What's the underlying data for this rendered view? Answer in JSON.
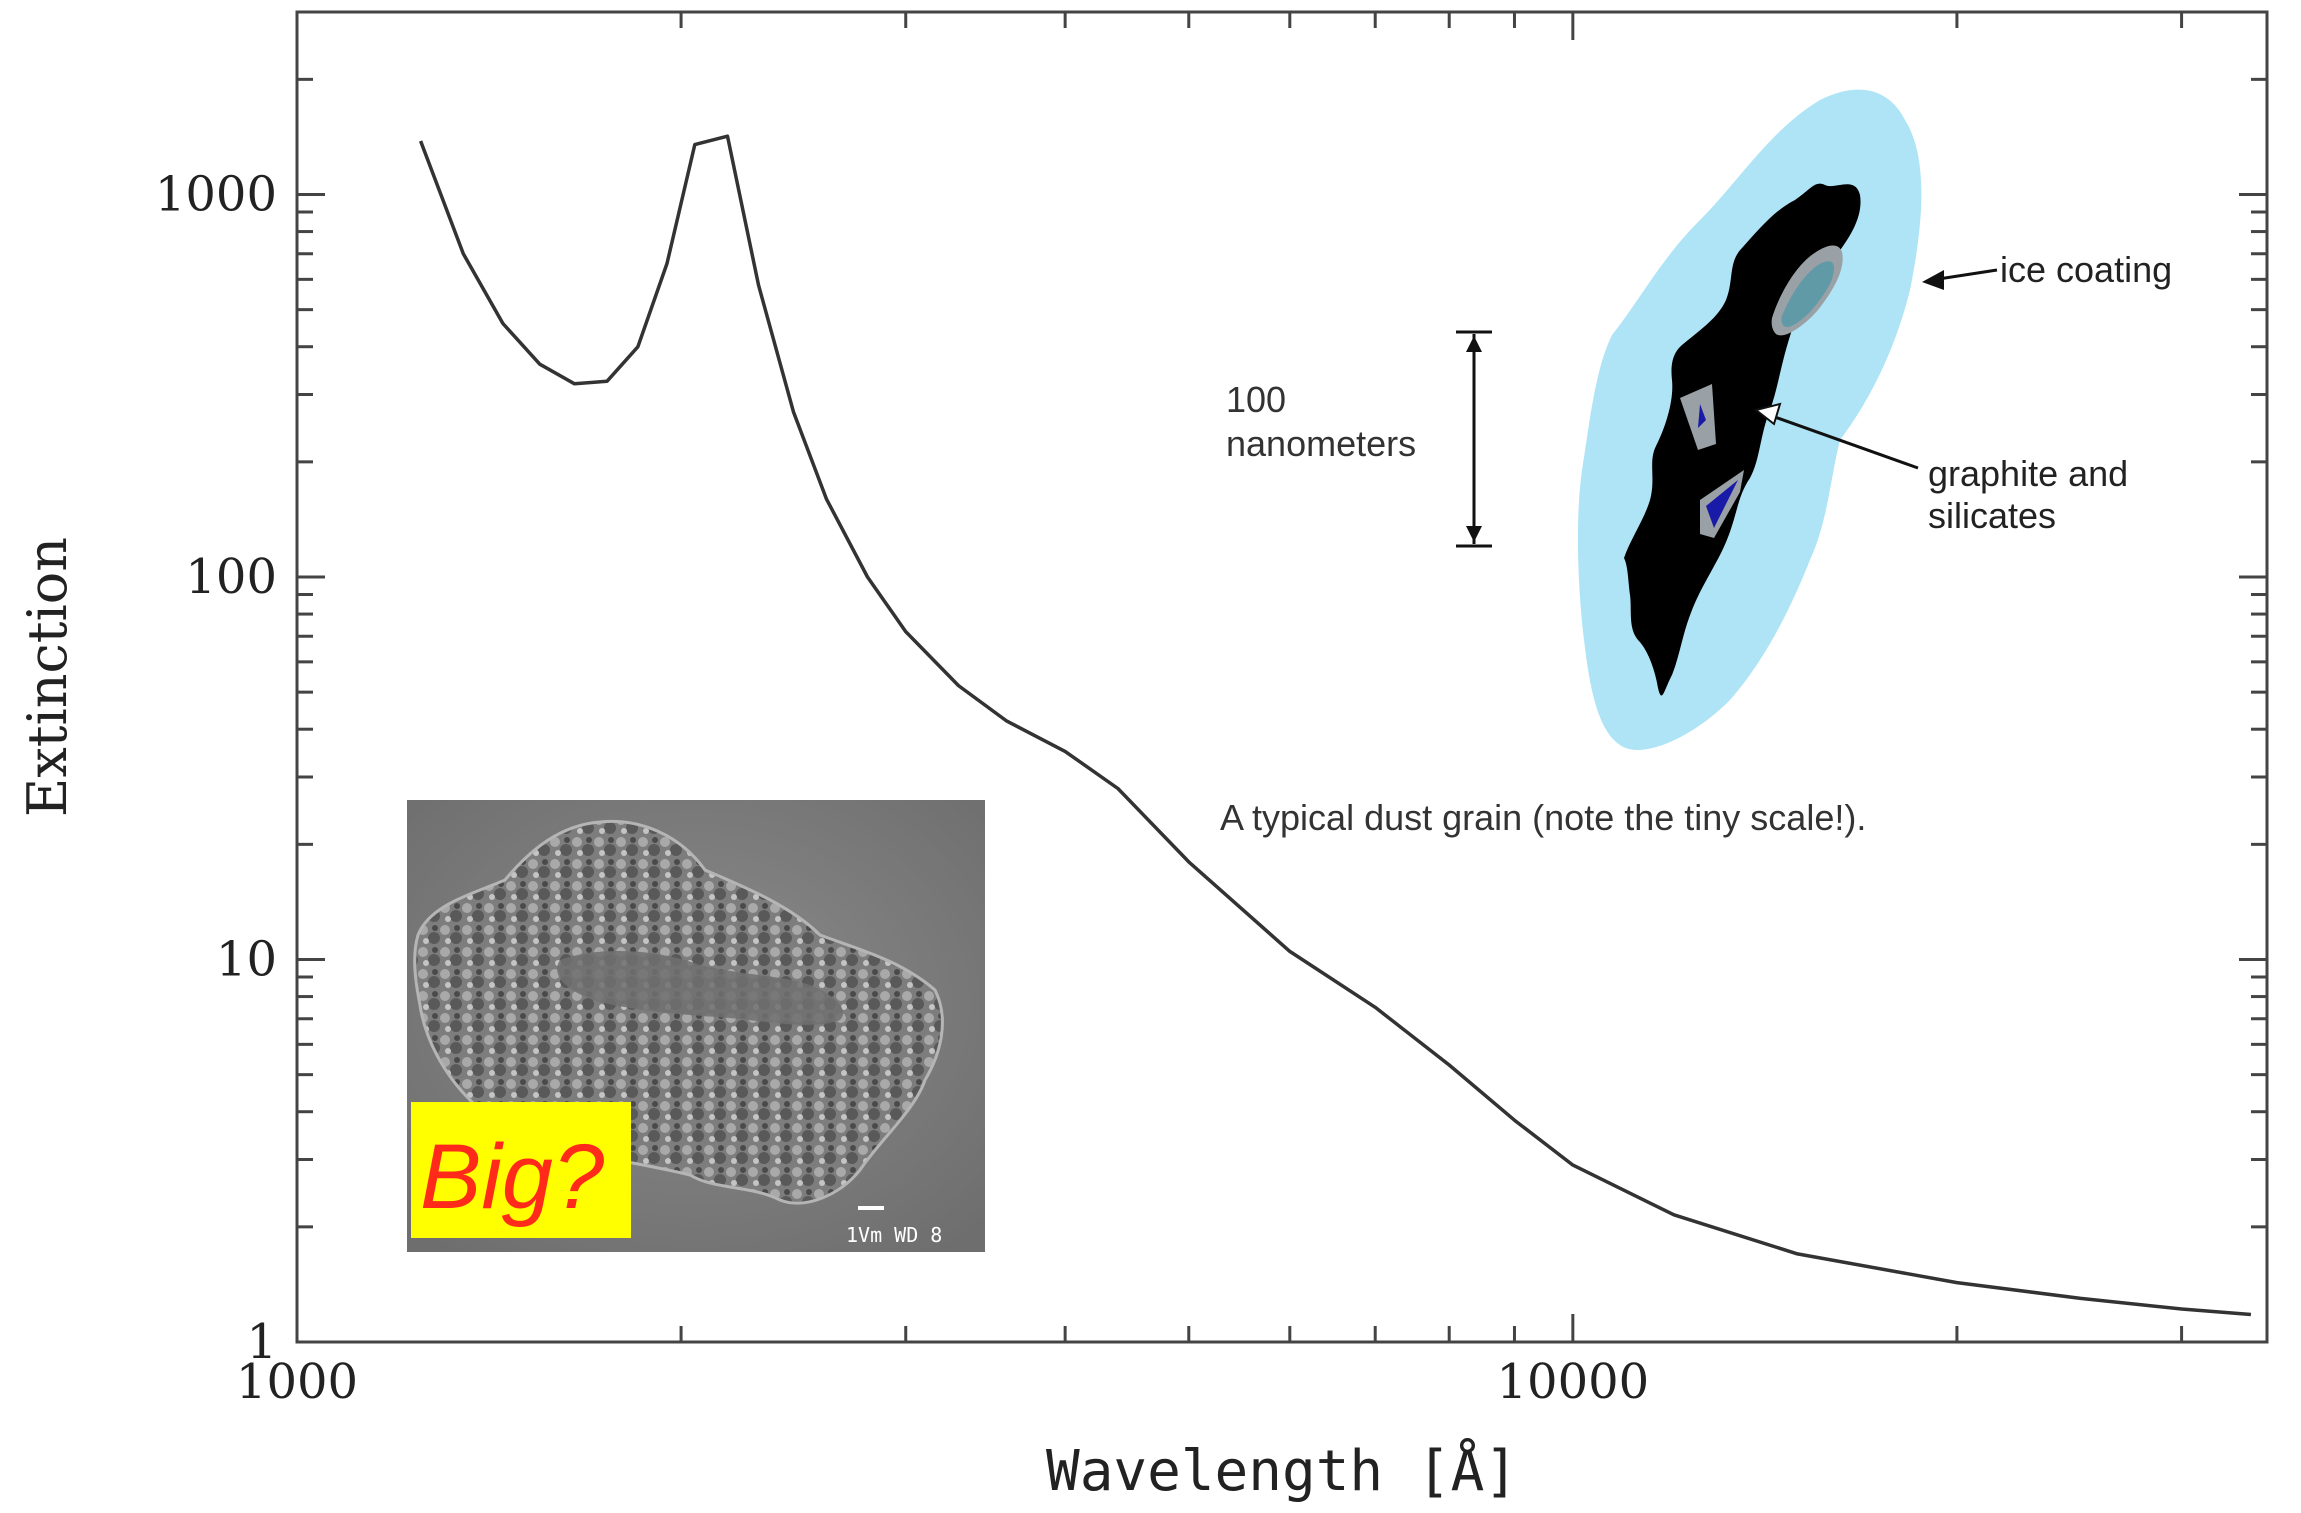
{
  "chart_data": {
    "type": "line",
    "xlabel": "Wavelength [Å]",
    "ylabel": "Extinction",
    "x_scale": "log",
    "y_scale": "log",
    "xlim": [
      1000,
      35000
    ],
    "ylim": [
      1,
      3000
    ],
    "x_ticks": [
      {
        "value": 1000,
        "label": "1000"
      },
      {
        "value": 10000,
        "label": "10000"
      }
    ],
    "y_ticks": [
      {
        "value": 1,
        "label": "1"
      },
      {
        "value": 10,
        "label": "10"
      },
      {
        "value": 100,
        "label": "100"
      },
      {
        "value": 1000,
        "label": "1000"
      }
    ],
    "grid": false,
    "series": [
      {
        "color": "#333333",
        "points": [
          [
            1250,
            1380
          ],
          [
            1350,
            700
          ],
          [
            1450,
            460
          ],
          [
            1550,
            360
          ],
          [
            1650,
            320
          ],
          [
            1750,
            325
          ],
          [
            1850,
            400
          ],
          [
            1950,
            660
          ],
          [
            2050,
            1350
          ],
          [
            2175,
            1420
          ],
          [
            2300,
            580
          ],
          [
            2450,
            270
          ],
          [
            2600,
            160
          ],
          [
            2800,
            100
          ],
          [
            3000,
            72
          ],
          [
            3300,
            52
          ],
          [
            3600,
            42
          ],
          [
            4000,
            35
          ],
          [
            4400,
            28
          ],
          [
            5000,
            18
          ],
          [
            6000,
            10.5
          ],
          [
            7000,
            7.5
          ],
          [
            8000,
            5.3
          ],
          [
            9000,
            3.8
          ],
          [
            10000,
            2.9
          ],
          [
            12000,
            2.15
          ],
          [
            15000,
            1.7
          ],
          [
            20000,
            1.43
          ],
          [
            25000,
            1.3
          ],
          [
            30000,
            1.22
          ],
          [
            34000,
            1.18
          ]
        ]
      }
    ]
  },
  "grain_illustration": {
    "colors": {
      "ice": "#aee4f6",
      "core": "#000000",
      "inclusion": "#9aa1a6",
      "silicate": "#1a1aa8",
      "highlight": "#5f9aa6"
    },
    "ice_label": "ice coating",
    "core_label_line1": "graphite and",
    "core_label_line2": "silicates",
    "scale_label_line1": "100",
    "scale_label_line2": "nanometers",
    "caption": "A typical dust grain (note the tiny scale!)."
  },
  "inset_photo": {
    "badge_text": "Big?",
    "badge_color": "#ffff00",
    "micro_label": "1Vm WD 8"
  }
}
